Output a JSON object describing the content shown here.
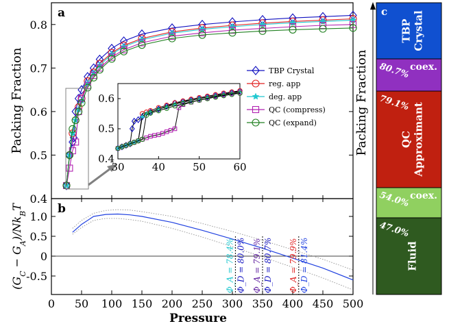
{
  "chart_data": [
    {
      "panel": "a",
      "type": "line",
      "xlabel": "",
      "ylabel": "Packing Fraction",
      "xlim": [
        0,
        500
      ],
      "ylim": [
        0.4,
        0.85
      ],
      "yticks": [
        "0.4",
        "0.5",
        "0.6",
        "0.7",
        "0.8"
      ],
      "legend_position": "center-right",
      "series": [
        {
          "name": "TBP Crystal",
          "color": "#1010c0",
          "marker": "diamond",
          "x": [
            25,
            30,
            35,
            37,
            40,
            45,
            50,
            60,
            70,
            80,
            100,
            120,
            150,
            200,
            250,
            300,
            350,
            400,
            450,
            500
          ],
          "y": [
            0.43,
            0.5,
            0.53,
            0.54,
            0.6,
            0.63,
            0.65,
            0.68,
            0.7,
            0.72,
            0.745,
            0.762,
            0.778,
            0.792,
            0.8,
            0.806,
            0.811,
            0.815,
            0.818,
            0.821
          ]
        },
        {
          "name": "reg. app",
          "color": "#e02020",
          "marker": "circle",
          "x": [
            25,
            30,
            35,
            40,
            45,
            50,
            60,
            70,
            80,
            100,
            120,
            150,
            200,
            250,
            300,
            350,
            400,
            450,
            500
          ],
          "y": [
            0.43,
            0.5,
            0.55,
            0.58,
            0.61,
            0.63,
            0.67,
            0.69,
            0.71,
            0.735,
            0.752,
            0.768,
            0.783,
            0.792,
            0.798,
            0.803,
            0.807,
            0.81,
            0.813
          ]
        },
        {
          "name": "deg. app",
          "color": "#20c8d0",
          "marker": "star",
          "x": [
            25,
            30,
            35,
            40,
            45,
            50,
            60,
            70,
            80,
            100,
            120,
            150,
            200,
            250,
            300,
            350,
            400,
            450,
            500
          ],
          "y": [
            0.43,
            0.5,
            0.55,
            0.58,
            0.605,
            0.625,
            0.665,
            0.688,
            0.706,
            0.732,
            0.749,
            0.765,
            0.78,
            0.789,
            0.795,
            0.8,
            0.804,
            0.807,
            0.81
          ]
        },
        {
          "name": "QC (compress)",
          "color": "#b020b0",
          "marker": "square",
          "x": [
            25,
            30,
            35,
            40,
            45,
            50,
            60,
            70,
            80,
            100,
            120,
            150,
            200,
            250,
            300,
            350,
            400,
            450,
            500
          ],
          "y": [
            0.43,
            0.47,
            0.51,
            0.53,
            0.6,
            0.63,
            0.66,
            0.683,
            0.7,
            0.725,
            0.742,
            0.758,
            0.773,
            0.781,
            0.787,
            0.791,
            0.795,
            0.798,
            0.8
          ]
        },
        {
          "name": "QC (expand)",
          "color": "#208020",
          "marker": "circle",
          "x": [
            25,
            30,
            35,
            40,
            45,
            50,
            60,
            70,
            80,
            100,
            120,
            150,
            200,
            250,
            300,
            350,
            400,
            450,
            500
          ],
          "y": [
            0.43,
            0.5,
            0.56,
            0.58,
            0.6,
            0.62,
            0.655,
            0.678,
            0.696,
            0.721,
            0.738,
            0.753,
            0.768,
            0.776,
            0.781,
            0.785,
            0.788,
            0.79,
            0.792
          ]
        }
      ],
      "inset": {
        "xlim": [
          30,
          60
        ],
        "ylim": [
          0.4,
          0.65
        ],
        "xticks": [
          "30",
          "40",
          "50",
          "60"
        ],
        "yticks": [
          "0.4",
          "0.5",
          "0.6"
        ]
      }
    },
    {
      "panel": "b",
      "type": "line",
      "xlabel": "Pressure",
      "ylabel": "(G_C − G_A)/Nk_BT",
      "xlim": [
        0,
        500
      ],
      "ylim": [
        -1.0,
        1.5
      ],
      "xticks": [
        "0",
        "50",
        "100",
        "150",
        "200",
        "250",
        "300",
        "350",
        "400",
        "450",
        "500"
      ],
      "yticks": [
        "1.0",
        "0.5",
        "0",
        "-0.5"
      ],
      "series": [
        {
          "name": "",
          "color": "#1f40e0",
          "x": [
            35,
            50,
            70,
            90,
            110,
            130,
            150,
            200,
            250,
            300,
            350,
            400,
            450,
            500
          ],
          "y": [
            0.6,
            0.8,
            1.0,
            1.05,
            1.06,
            1.04,
            1.0,
            0.85,
            0.65,
            0.43,
            0.2,
            -0.05,
            -0.3,
            -0.6
          ]
        },
        {
          "name": "",
          "color": "#909090",
          "dashed": true,
          "x": [
            35,
            50,
            70,
            90,
            110,
            130,
            150,
            200,
            250,
            300,
            350,
            400,
            450,
            500
          ],
          "y": [
            0.7,
            0.9,
            1.08,
            1.15,
            1.17,
            1.16,
            1.12,
            1.0,
            0.82,
            0.62,
            0.4,
            0.16,
            -0.08,
            -0.35
          ]
        },
        {
          "name": "",
          "color": "#909090",
          "dashed": true,
          "x": [
            35,
            50,
            70,
            90,
            110,
            130,
            150,
            200,
            250,
            300,
            350,
            400,
            450,
            500
          ],
          "y": [
            0.55,
            0.72,
            0.9,
            0.95,
            0.95,
            0.92,
            0.88,
            0.7,
            0.48,
            0.24,
            -0.02,
            -0.28,
            -0.55,
            -0.85
          ]
        }
      ],
      "annotations": [
        {
          "x": 305,
          "label_a": "Φ_A = 78.4%",
          "label_d": "Φ_D = 80.0%",
          "color_a": "#20c8d0",
          "color_d": "#1010c0"
        },
        {
          "x": 350,
          "label_a": "Φ_A = 79.1%",
          "label_d": "Φ_D = 80.7%",
          "color_a": "#6020a0",
          "color_d": "#1010c0"
        },
        {
          "x": 410,
          "label_a": "Φ_A = 79.9%",
          "label_d": "Φ_D = 81.4%",
          "color_a": "#e02020",
          "color_d": "#1f40e0"
        }
      ]
    },
    {
      "panel": "c",
      "type": "table",
      "ylabel": "Packing Fraction",
      "blocks": [
        {
          "name": "TBP\nCrystal",
          "start": "",
          "color": "#1050d0"
        },
        {
          "name": "coex.",
          "start": "80.7%",
          "color": "#9030c0"
        },
        {
          "name": "QC\nApproximant",
          "start": "79.1%",
          "color": "#c02010"
        },
        {
          "name": "coex.",
          "start": "54.0%",
          "color": "#90d060"
        },
        {
          "name": "Fluid",
          "start": "47.0%",
          "color": "#2f5a20"
        }
      ]
    }
  ],
  "labels": {
    "a": "a",
    "b": "b",
    "c": "c"
  }
}
